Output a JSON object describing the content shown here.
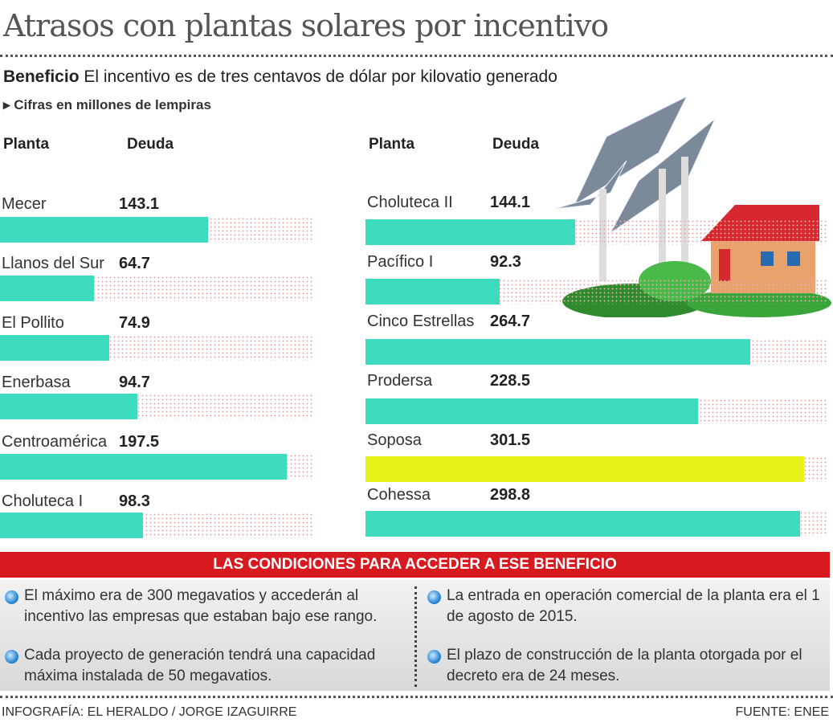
{
  "title": "Atrasos con plantas solares por incentivo",
  "subtitle": {
    "bold": "Beneficio",
    "text": " El incentivo es de tres centavos de dólar por kilovatio generado"
  },
  "note": "Cifras en millones de lempiras",
  "headers": {
    "plant": "Planta",
    "debt": "Deuda"
  },
  "colors": {
    "bar": "#3ddcbf",
    "highlight": "#e6f21a",
    "track_dots": "#e7a8a8",
    "banner": "#d71920"
  },
  "chart_data": {
    "type": "bar",
    "orientation": "horizontal",
    "unit": "millones de lempiras",
    "columns": [
      {
        "categories": [
          "Mecer",
          "Llanos del Sur",
          "El Pollito",
          "Enerbasa",
          "Centroamérica",
          "Choluteca I"
        ],
        "values": [
          143.1,
          64.7,
          74.9,
          94.7,
          197.5,
          98.3
        ],
        "labels": [
          "143.1",
          "64.7",
          "74.9",
          "94.7",
          "197.5",
          "98.3"
        ]
      },
      {
        "categories": [
          "Choluteca II",
          "Pacífico I",
          "Cinco Estrellas",
          "Prodersa",
          "Soposa",
          "Cohessa"
        ],
        "values": [
          144.1,
          92.3,
          264.7,
          228.5,
          301.5,
          298.8
        ],
        "labels": [
          "144.1",
          "92.3",
          "264.7",
          "228.5",
          "301.5",
          "298.8"
        ],
        "highlight": "Soposa"
      }
    ]
  },
  "conditions": {
    "title": "LAS CONDICIONES PARA ACCEDER A ESE BENEFICIO",
    "items": [
      "El máximo era de 300 megavatios y accederán al incentivo las empresas que estaban bajo ese rango.",
      "Cada proyecto de generación tendrá una capacidad máxima instalada de 50 megavatios.",
      "La entrada en operación comercial de la planta era el 1 de agosto de 2015.",
      "El plazo de construcción de la planta otorgada por el decreto era de 24 meses."
    ]
  },
  "footer": {
    "credit": "INFOGRAFÍA: EL HERALDO / JORGE IZAGUIRRE",
    "source": "FUENTE: ENEE"
  }
}
